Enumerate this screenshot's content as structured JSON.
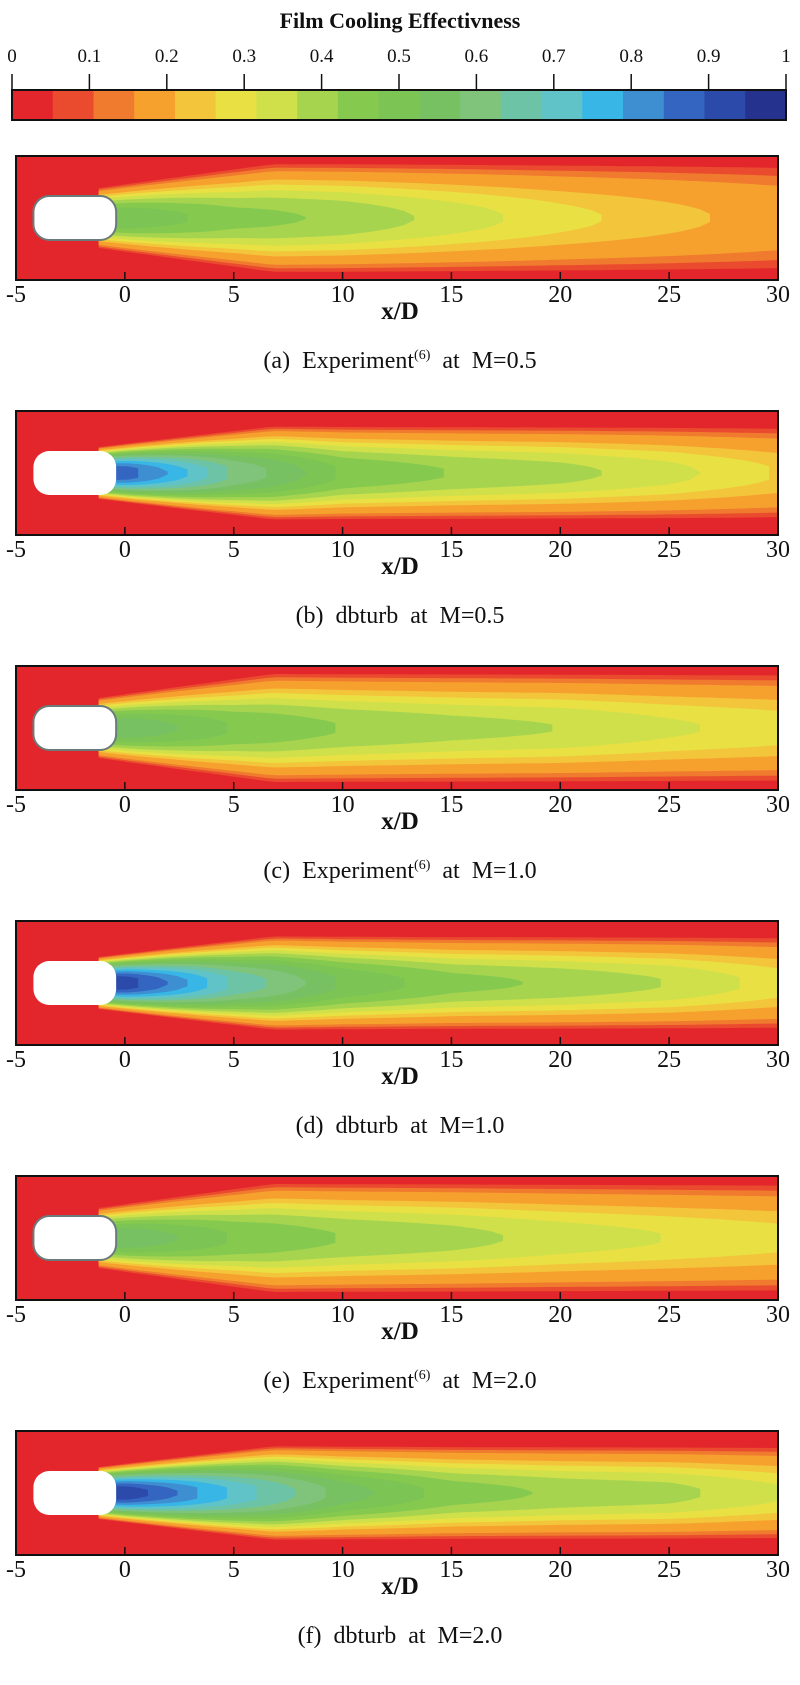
{
  "colorbar": {
    "title": "Film Cooling Effectivness",
    "ticks": [
      "0",
      "0.1",
      "0.2",
      "0.3",
      "0.4",
      "0.5",
      "0.6",
      "0.7",
      "0.8",
      "0.9",
      "1"
    ],
    "levels": [
      "#e3262b",
      "#ea4a2d",
      "#f07a2e",
      "#f6a12e",
      "#f3c53a",
      "#e9e044",
      "#cfe04a",
      "#a6d44f",
      "#86c94f",
      "#7cc454",
      "#78c162",
      "#7fc47a",
      "#6cc3a6",
      "#60c3c8",
      "#38b6e6",
      "#3e8fd2",
      "#3466c1",
      "#2b4aa9",
      "#25338f"
    ]
  },
  "chart_data": [
    {
      "type": "heatmap",
      "title": "(a) Experiment(6) at M=0.5",
      "caption": {
        "letter": "(a)",
        "name": "Experiment",
        "ref": "(6)",
        "at": "at",
        "condition": "M=0.5"
      },
      "xlabel": "x/D",
      "xticks": [
        "-5",
        "0",
        "5",
        "10",
        "15",
        "20",
        "25",
        "30"
      ],
      "xlim": [
        -5,
        30
      ],
      "source": "experiment",
      "M": 0.5,
      "centerline_effectiveness": {
        "x": [
          0,
          5,
          10,
          15,
          20,
          25,
          30
        ],
        "eta": [
          0.55,
          0.47,
          0.44,
          0.38,
          0.32,
          0.27,
          0.22
        ]
      }
    },
    {
      "type": "heatmap",
      "title": "(b) dbturb at M=0.5",
      "caption": {
        "letter": "(b)",
        "name": "dbturb",
        "ref": "",
        "at": "at",
        "condition": "M=0.5"
      },
      "xlabel": "x/D",
      "xticks": [
        "-5",
        "0",
        "5",
        "10",
        "15",
        "20",
        "25",
        "30"
      ],
      "xlim": [
        -5,
        30
      ],
      "source": "simulation",
      "M": 0.5,
      "centerline_effectiveness": {
        "x": [
          0,
          5,
          10,
          15,
          20,
          25,
          30
        ],
        "eta": [
          0.9,
          0.65,
          0.5,
          0.45,
          0.42,
          0.37,
          0.3
        ]
      }
    },
    {
      "type": "heatmap",
      "title": "(c) Experiment(6) at M=1.0",
      "caption": {
        "letter": "(c)",
        "name": "Experiment",
        "ref": "(6)",
        "at": "at",
        "condition": "M=1.0"
      },
      "xlabel": "x/D",
      "xticks": [
        "-5",
        "0",
        "5",
        "10",
        "15",
        "20",
        "25",
        "30"
      ],
      "xlim": [
        -5,
        30
      ],
      "source": "experiment",
      "M": 1.0,
      "centerline_effectiveness": {
        "x": [
          0,
          5,
          10,
          15,
          20,
          25,
          30
        ],
        "eta": [
          0.6,
          0.5,
          0.45,
          0.42,
          0.4,
          0.36,
          0.33
        ]
      }
    },
    {
      "type": "heatmap",
      "title": "(d) dbturb at M=1.0",
      "caption": {
        "letter": "(d)",
        "name": "dbturb",
        "ref": "",
        "at": "at",
        "condition": "M=1.0"
      },
      "xlabel": "x/D",
      "xticks": [
        "-5",
        "0",
        "5",
        "10",
        "15",
        "20",
        "25",
        "30"
      ],
      "xlim": [
        -5,
        30
      ],
      "source": "simulation",
      "M": 1.0,
      "centerline_effectiveness": {
        "x": [
          0,
          5,
          10,
          15,
          20,
          25,
          30
        ],
        "eta": [
          0.95,
          0.7,
          0.55,
          0.47,
          0.44,
          0.4,
          0.33
        ]
      }
    },
    {
      "type": "heatmap",
      "title": "(e) Experiment(6) at M=2.0",
      "caption": {
        "letter": "(e)",
        "name": "Experiment",
        "ref": "(6)",
        "at": "at",
        "condition": "M=2.0"
      },
      "xlabel": "x/D",
      "xticks": [
        "-5",
        "0",
        "5",
        "10",
        "15",
        "20",
        "25",
        "30"
      ],
      "xlim": [
        -5,
        30
      ],
      "source": "experiment",
      "M": 2.0,
      "centerline_effectiveness": {
        "x": [
          0,
          5,
          10,
          15,
          20,
          25,
          30
        ],
        "eta": [
          0.6,
          0.5,
          0.45,
          0.42,
          0.38,
          0.35,
          0.32
        ]
      }
    },
    {
      "type": "heatmap",
      "title": "(f) dbturb at M=2.0",
      "caption": {
        "letter": "(f)",
        "name": "dbturb",
        "ref": "",
        "at": "at",
        "condition": "M=2.0"
      },
      "xlabel": "x/D",
      "xticks": [
        "-5",
        "0",
        "5",
        "10",
        "15",
        "20",
        "25",
        "30"
      ],
      "xlim": [
        -5,
        30
      ],
      "source": "simulation",
      "M": 2.0,
      "centerline_effectiveness": {
        "x": [
          0,
          5,
          10,
          15,
          20,
          25,
          30
        ],
        "eta": [
          0.95,
          0.75,
          0.58,
          0.48,
          0.44,
          0.42,
          0.36
        ]
      }
    }
  ]
}
